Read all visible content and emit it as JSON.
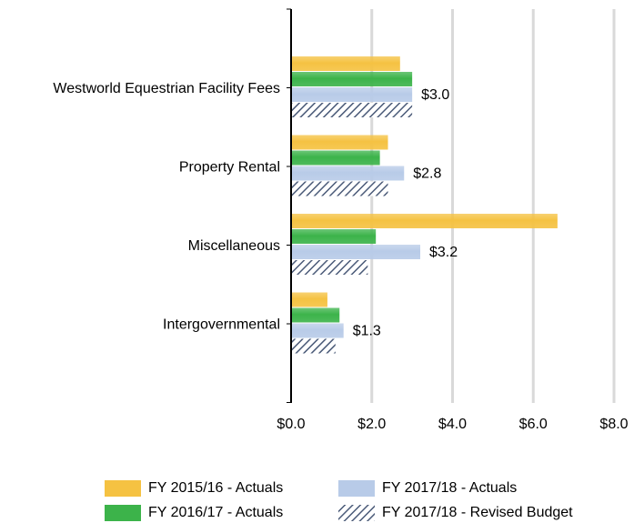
{
  "chart_data": {
    "type": "hbar",
    "categories": [
      "Westworld Equestrian Facility Fees",
      "Property Rental",
      "Miscellaneous",
      "Intergovernmental"
    ],
    "series": [
      {
        "name": "FY 2015/16 - Actuals",
        "color": "#f5c242",
        "values": [
          2.7,
          2.4,
          6.6,
          0.9
        ]
      },
      {
        "name": "FY 2016/17 - Actuals",
        "color": "#3cb34a",
        "values": [
          3.0,
          2.2,
          2.1,
          1.2
        ]
      },
      {
        "name": "FY 2017/18 - Actuals",
        "color": "#b8cbe8",
        "values": [
          3.0,
          2.8,
          3.2,
          1.3
        ],
        "value_labels": [
          "$3.0",
          "$2.8",
          "$3.2",
          "$1.3"
        ]
      },
      {
        "name": "FY 2017/18 - Revised Budget",
        "color": "#4a5a78",
        "hatch": true,
        "values": [
          3.0,
          2.4,
          1.9,
          1.1
        ]
      }
    ],
    "xlim": [
      0,
      8
    ],
    "xticks": [
      {
        "value": 0,
        "label": "$0.0"
      },
      {
        "value": 2,
        "label": "$2.0"
      },
      {
        "value": 4,
        "label": "$4.0"
      },
      {
        "value": 6,
        "label": "$6.0"
      },
      {
        "value": 8,
        "label": "$8.0"
      }
    ],
    "grid": true
  }
}
